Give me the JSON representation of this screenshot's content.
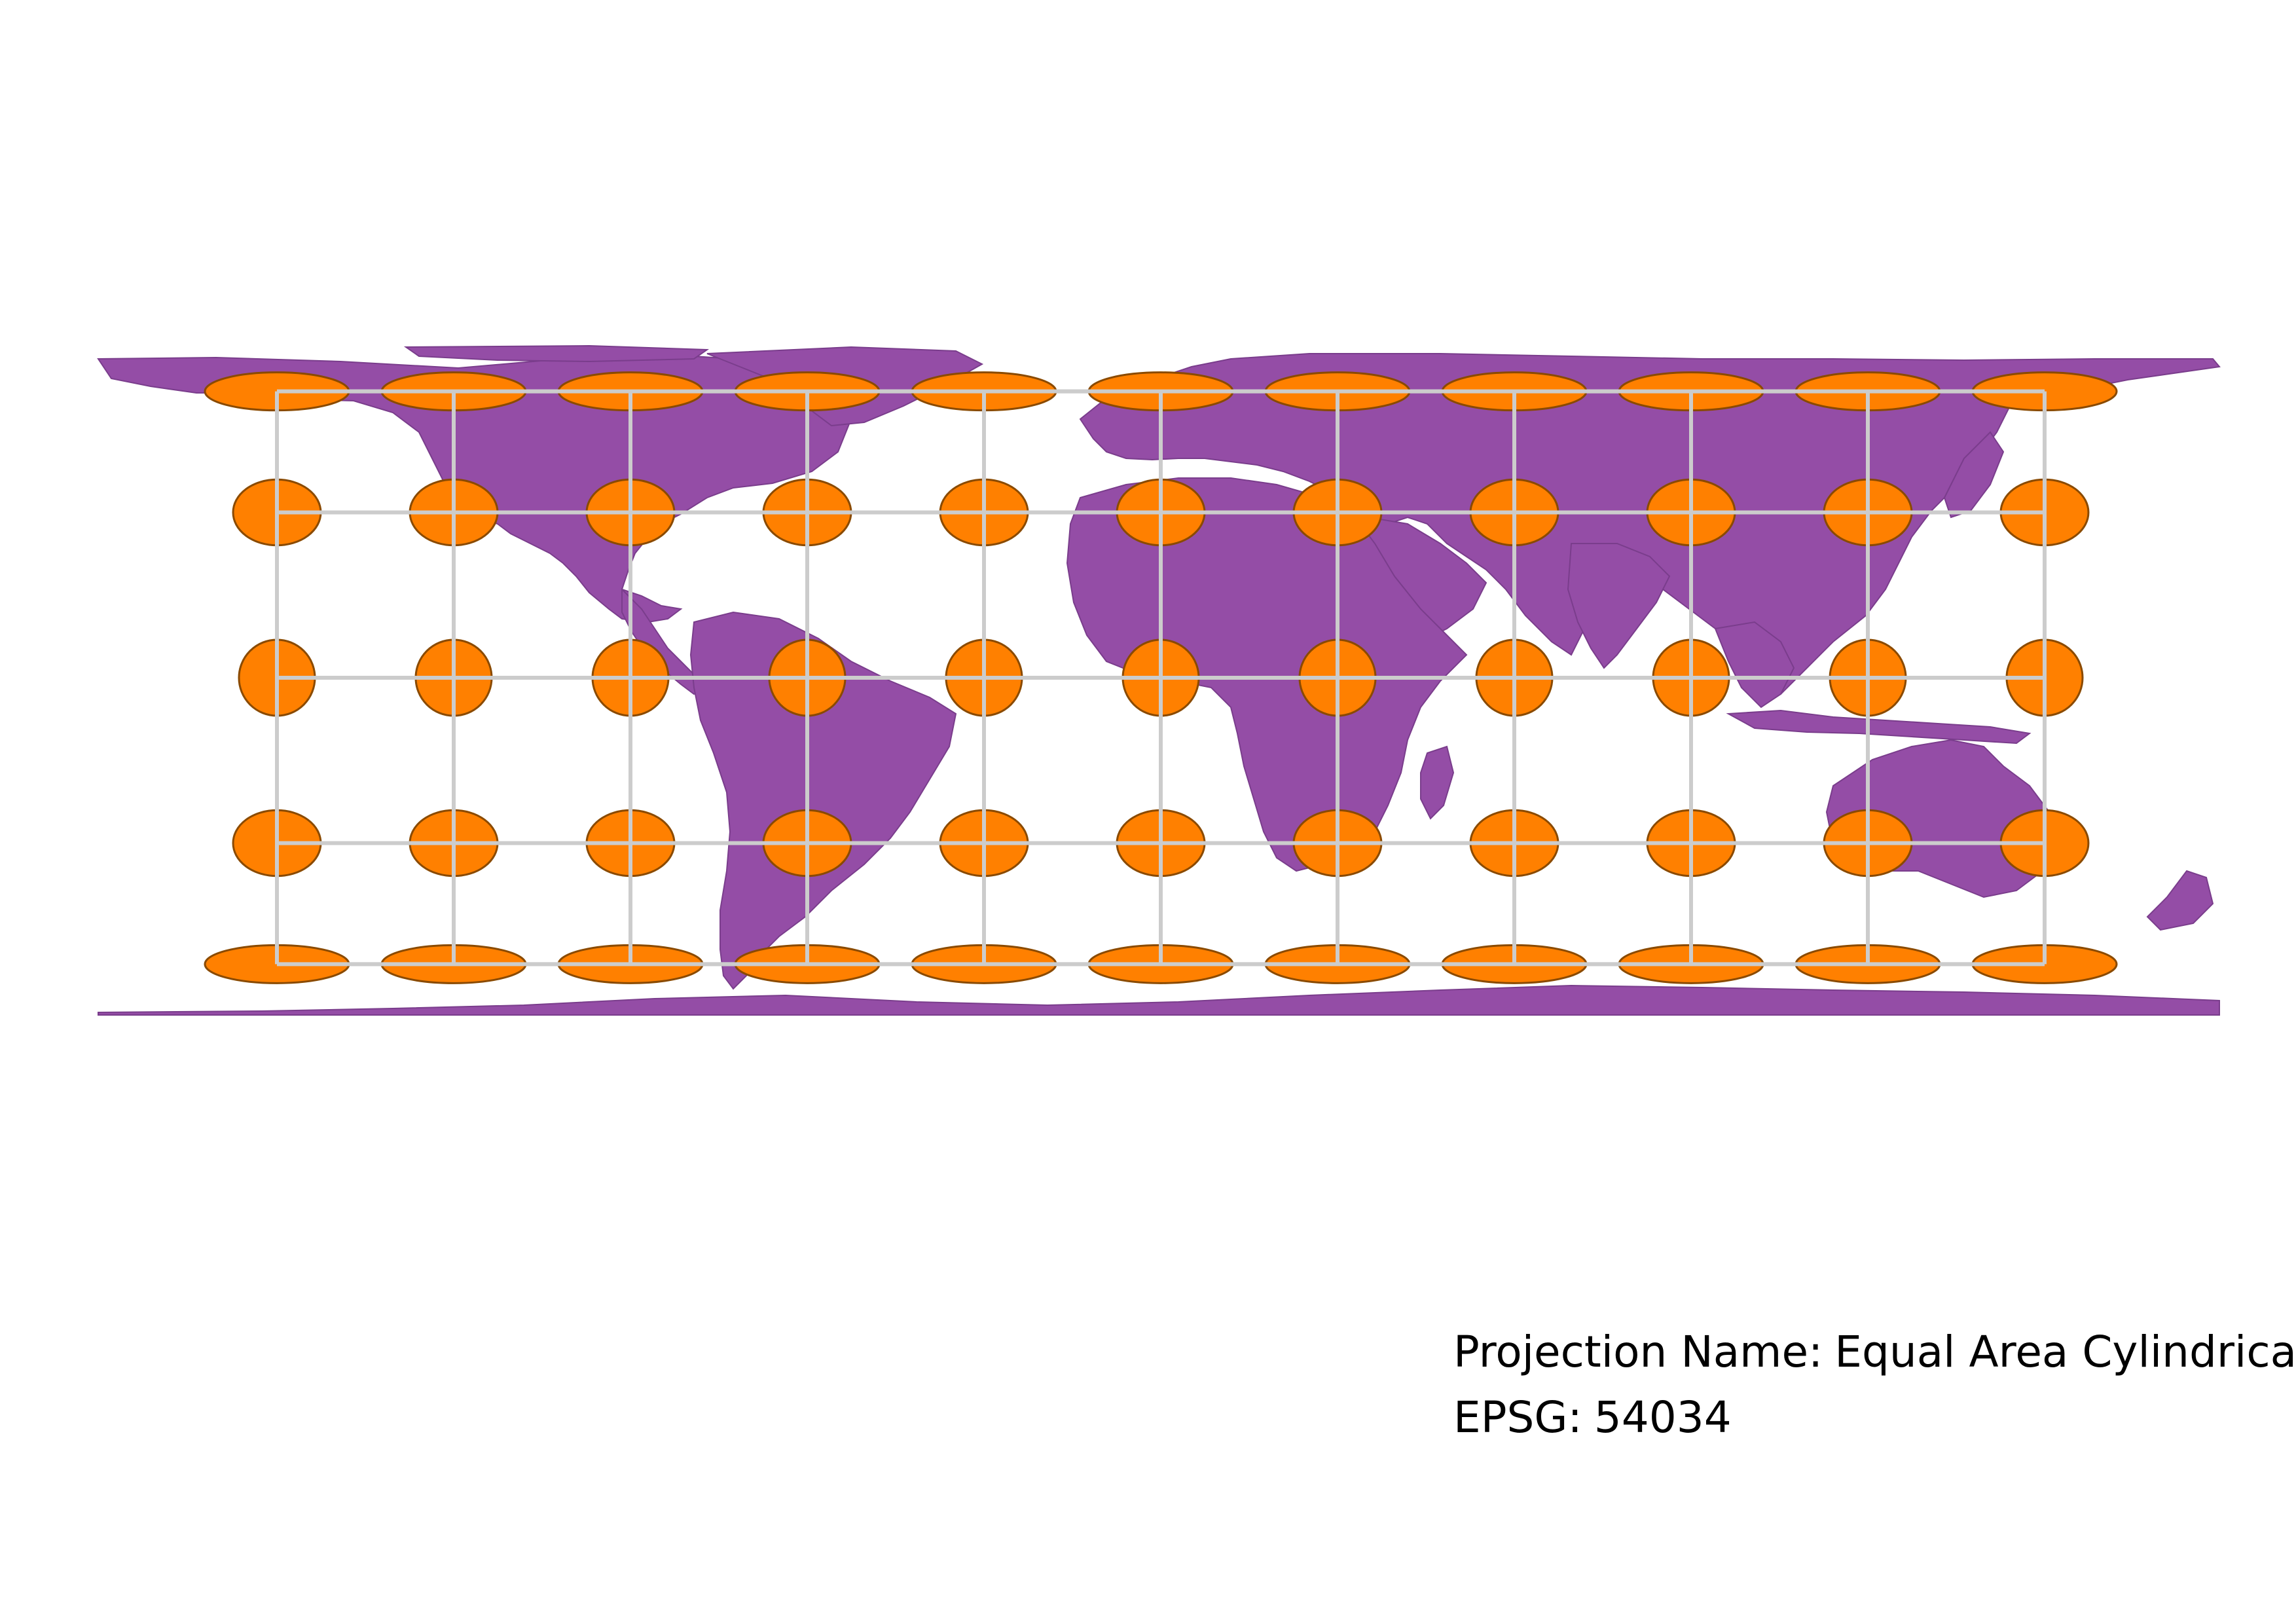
{
  "projection": {
    "name_label": "Projection Name:",
    "name_value": "Equal Area Cylindrical",
    "epsg_label": "EPSG:",
    "epsg_value": "54034"
  },
  "colors": {
    "land": "#944da6",
    "land_border": "#7a3d8c",
    "indicatrix_fill": "#ff8000",
    "indicatrix_stroke": "#8a4a00",
    "graticule": "#cccccc",
    "background": "#ffffff"
  },
  "graticule": {
    "longitudes_deg": [
      -150,
      -120,
      -90,
      -60,
      -30,
      0,
      30,
      60,
      90,
      120,
      150
    ],
    "latitudes_deg": [
      60,
      30,
      0,
      -30,
      -60
    ]
  },
  "indicatrix": {
    "description_note_hidden": false,
    "shape": "tissot",
    "lon_deg": [
      -150,
      -120,
      -90,
      -60,
      -30,
      0,
      30,
      60,
      90,
      120,
      150
    ],
    "lat_deg": [
      60,
      30,
      0,
      -30,
      -60
    ]
  }
}
